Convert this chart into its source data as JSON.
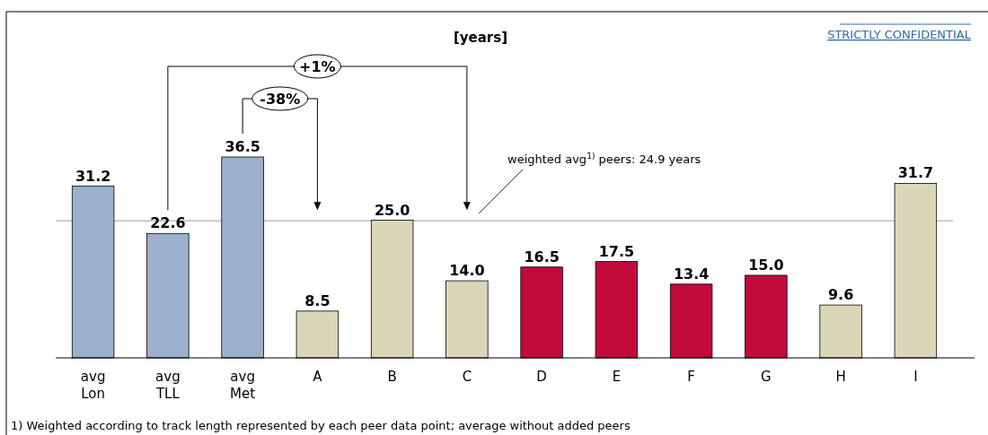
{
  "chart_data": {
    "type": "bar",
    "title": "[years]",
    "categories": [
      "avg Lon",
      "avg TLL",
      "avg Met",
      "A",
      "B",
      "C",
      "D",
      "E",
      "F",
      "G",
      "H",
      "I"
    ],
    "values": [
      31.2,
      22.6,
      36.5,
      8.5,
      25.0,
      14.0,
      16.5,
      17.5,
      13.4,
      15.0,
      9.6,
      31.7
    ],
    "colors": [
      "#9cafcd",
      "#9cafcd",
      "#9cafcd",
      "#dcd6b8",
      "#dcd6b8",
      "#dcd6b8",
      "#c20b3b",
      "#c20b3b",
      "#c20b3b",
      "#c20b3b",
      "#dcd6b8",
      "#dcd6b8"
    ],
    "value_labels": [
      "31.2",
      "22.6",
      "36.5",
      "8.5",
      "25.0",
      "14.0",
      "16.5",
      "17.5",
      "13.4",
      "15.0",
      "9.6",
      "31.7"
    ],
    "ref_lines": [
      {
        "axis": "y",
        "value": 24.9,
        "label": "weighted avg$^{1)}$ peers: 24.9 years",
        "color": "#c8c8c8"
      }
    ],
    "annotations": [
      "+1%",
      "-38%",
      "STRICTLY CONFIDENTIAL",
      "1) Weighted according to track length represented by each peer data point; average without added peers"
    ]
  }
}
